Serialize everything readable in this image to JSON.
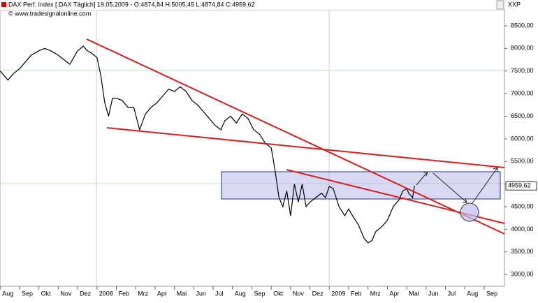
{
  "chart_data": {
    "type": "line",
    "title": "DAX Perf. Index [.DAX  Täglich] 19.05.2009 - O:4874,84 H:5005,45 L:4874,84 C:4959,62",
    "subtitle": "© www.tradesignalonline.com",
    "axis_unit": "XXP",
    "color": "#000000",
    "x": [
      -5.0,
      -4.8,
      -4.6,
      -4.3,
      -4.0,
      -3.7,
      -3.4,
      -3.0,
      -2.7,
      -2.4,
      -2.0,
      -1.7,
      -1.4,
      -1.2,
      -1.0,
      -0.7,
      -0.5,
      -0.3,
      0.0,
      0.2,
      0.4,
      0.6,
      0.8,
      1.0,
      1.3,
      1.6,
      1.9,
      2.2,
      2.5,
      2.8,
      3.1,
      3.4,
      3.7,
      4.0,
      4.3,
      4.6,
      4.9,
      5.2,
      5.5,
      5.8,
      6.1,
      6.4,
      6.6,
      6.9,
      7.2,
      7.5,
      7.8,
      8.1,
      8.4,
      8.7,
      9.0,
      9.2,
      9.4,
      9.6,
      9.8,
      10.0,
      10.2,
      10.4,
      10.6,
      10.8,
      11.0,
      11.3,
      11.6,
      11.8,
      12.0,
      12.2,
      12.5,
      12.8,
      13.0,
      13.2,
      13.5,
      13.8,
      14.0,
      14.2,
      14.4,
      14.7,
      15.0,
      15.3,
      15.6,
      15.8,
      16.0,
      16.1,
      16.3,
      16.4
    ],
    "values": [
      7500,
      7400,
      7300,
      7450,
      7550,
      7700,
      7850,
      7950,
      8000,
      7950,
      7850,
      7750,
      7650,
      7800,
      7950,
      8050,
      7950,
      7900,
      7800,
      7400,
      6800,
      6500,
      6900,
      6900,
      6850,
      6700,
      6700,
      6200,
      6550,
      6700,
      6800,
      6950,
      7100,
      7050,
      7150,
      7050,
      6850,
      6750,
      6600,
      6450,
      6300,
      6200,
      6400,
      6500,
      6350,
      6550,
      6450,
      6200,
      6100,
      5900,
      5800,
      5300,
      4700,
      4500,
      4850,
      4300,
      5000,
      4600,
      5000,
      4500,
      4600,
      4700,
      4800,
      4700,
      4950,
      4900,
      4500,
      4300,
      4450,
      4300,
      4100,
      3800,
      3700,
      3750,
      3950,
      4050,
      4200,
      4500,
      4650,
      4850,
      4900,
      4800,
      4700,
      4959.62
    ],
    "last_label": {
      "value": 4959.62,
      "label": "4959,62"
    },
    "xlim": [
      -5,
      21
    ],
    "xticks": [
      {
        "value": -5,
        "label": "Aug"
      },
      {
        "value": -4,
        "label": "Sep"
      },
      {
        "value": -3,
        "label": "Okt"
      },
      {
        "value": -2,
        "label": "Nov"
      },
      {
        "value": -1,
        "label": "Dez"
      },
      {
        "value": 0,
        "label": "2008"
      },
      {
        "value": 1,
        "label": "Feb"
      },
      {
        "value": 2,
        "label": "Mrz"
      },
      {
        "value": 3,
        "label": "Apr"
      },
      {
        "value": 4,
        "label": "Mai"
      },
      {
        "value": 5,
        "label": "Jun"
      },
      {
        "value": 6,
        "label": "Jul"
      },
      {
        "value": 7,
        "label": "Aug"
      },
      {
        "value": 8,
        "label": "Sep"
      },
      {
        "value": 9,
        "label": "Okt"
      },
      {
        "value": 10,
        "label": "Nov"
      },
      {
        "value": 11,
        "label": "Dez"
      },
      {
        "value": 12,
        "label": "2009"
      },
      {
        "value": 13,
        "label": "Feb"
      },
      {
        "value": 14,
        "label": "Mrz"
      },
      {
        "value": 15,
        "label": "Apr"
      },
      {
        "value": 16,
        "label": "Mai"
      },
      {
        "value": 17,
        "label": "Jun"
      },
      {
        "value": 18,
        "label": "Jul"
      },
      {
        "value": 19,
        "label": "Aug"
      },
      {
        "value": 20,
        "label": "Sep"
      }
    ],
    "ylim": [
      2740,
      8855
    ],
    "yticks": [
      {
        "value": 3000,
        "label": "3000,00"
      },
      {
        "value": 3500,
        "label": "3500,00"
      },
      {
        "value": 4000,
        "label": "4000,00"
      },
      {
        "value": 4500,
        "label": "4500,00"
      },
      {
        "value": 5000,
        "label": "5000,00"
      },
      {
        "value": 5500,
        "label": "5500,00"
      },
      {
        "value": 6000,
        "label": "6000,00"
      },
      {
        "value": 6500,
        "label": "6500,00"
      },
      {
        "value": 7000,
        "label": "7000,00"
      },
      {
        "value": 7500,
        "label": "7500,00"
      },
      {
        "value": 8000,
        "label": "8000,00"
      },
      {
        "value": 8500,
        "label": "8500,00"
      }
    ]
  }
}
